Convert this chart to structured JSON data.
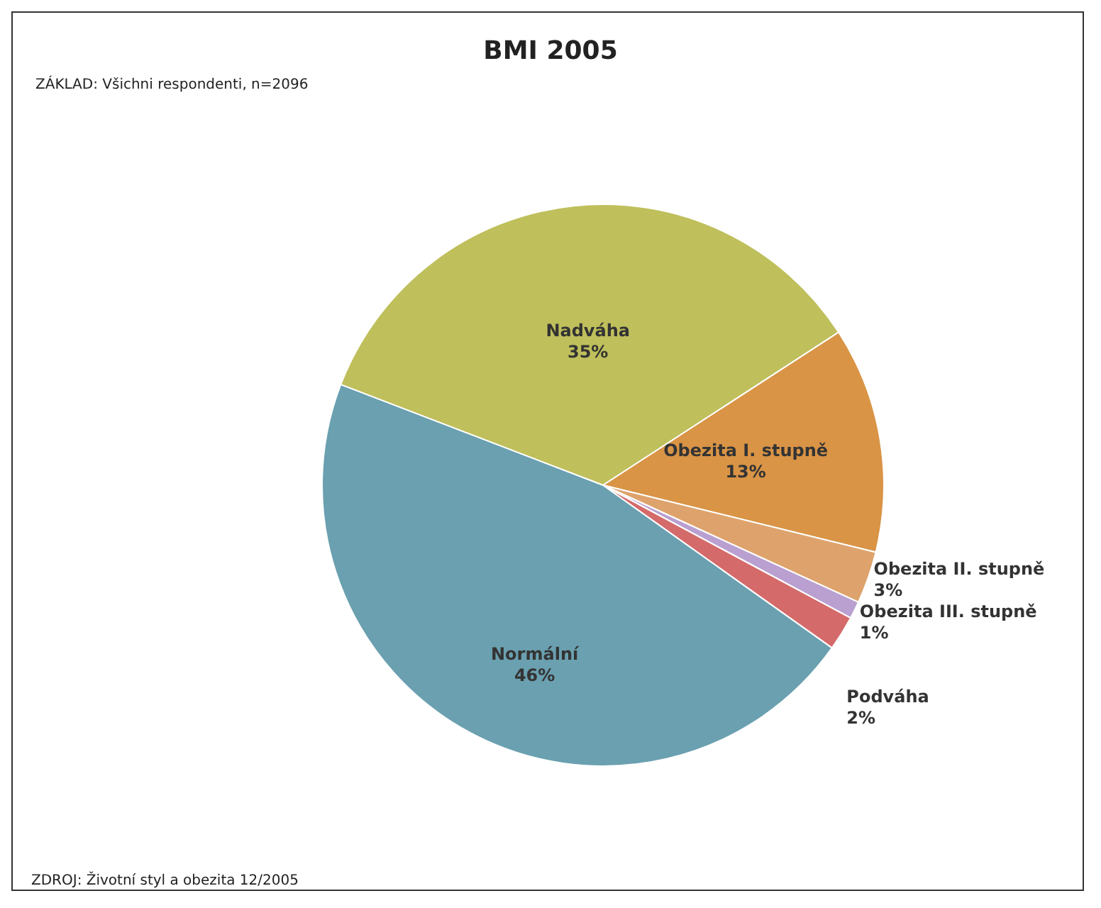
{
  "chart_data": {
    "type": "pie",
    "title": "BMI 2005",
    "subtitle": "ZÁKLAD: Všichni respondenti, n=2096",
    "categories": [
      "Nadváha",
      "Obezita I. stupně",
      "Obezita II. stupně",
      "Obezita III. stupně",
      "Podváha",
      "Normální"
    ],
    "values": [
      35,
      13,
      3,
      1,
      2,
      46
    ],
    "colors": [
      "#bfbf5c",
      "#d99446",
      "#dea36c",
      "#b9a0d0",
      "#d46a6a",
      "#6aa0b0"
    ],
    "value_labels": [
      "35%",
      "13%",
      "3%",
      "1%",
      "2%",
      "46%"
    ],
    "legend": false,
    "annotations": [
      "ZDROJ: Životní styl a obezita 12/2005"
    ]
  }
}
